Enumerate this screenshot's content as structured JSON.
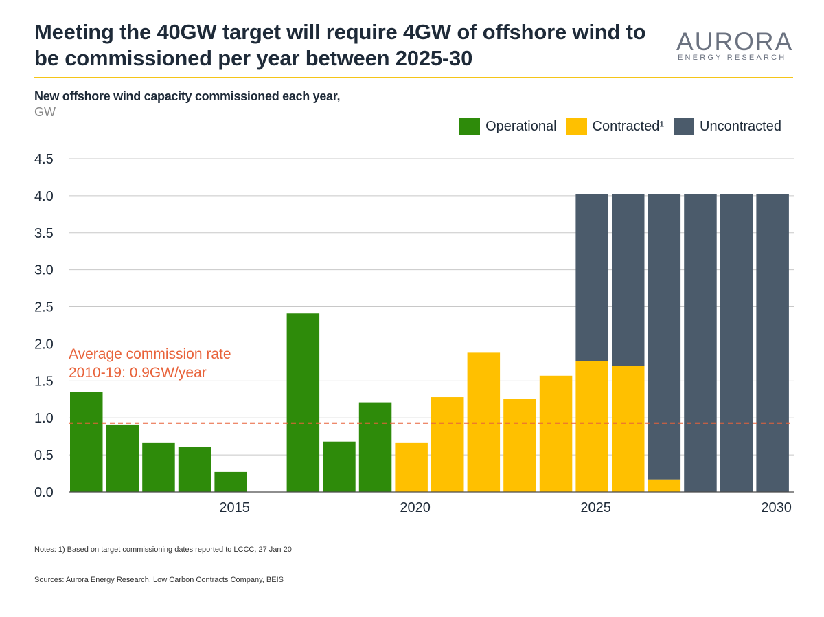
{
  "title": "Meeting the 40GW target will require 4GW of offshore wind to be commissioned per year between 2025-30",
  "logo": {
    "main": "AURORA",
    "sub": "ENERGY RESEARCH"
  },
  "colors": {
    "operational": "#2e8b0a",
    "contracted": "#ffc000",
    "uncontracted": "#4b5b6b",
    "average_line": "#e8623a",
    "gold_rule": "#f5c518"
  },
  "footer": {
    "notes": "Notes: 1) Based on target commissioning dates reported to LCCC, 27 Jan 20",
    "sources": "Sources: Aurora Energy Research, Low Carbon Contracts Company, BEIS"
  },
  "chart_data": {
    "type": "bar",
    "stacked": true,
    "title": "New offshore wind capacity commissioned each year,",
    "ylabel": "GW",
    "ylim": [
      0,
      4.5
    ],
    "yticks": [
      "0.0",
      "0.5",
      "1.0",
      "1.5",
      "2.0",
      "2.5",
      "3.0",
      "3.5",
      "4.0",
      "4.5"
    ],
    "xtick_labels": [
      {
        "label": "2015",
        "year": 2015
      },
      {
        "label": "2020",
        "year": 2020
      },
      {
        "label": "2025",
        "year": 2025
      },
      {
        "label": "2030",
        "year": 2030
      }
    ],
    "categories": [
      2011,
      2012,
      2013,
      2014,
      2015,
      2016,
      2017,
      2018,
      2019,
      2020,
      2021,
      2022,
      2023,
      2024,
      2025,
      2026,
      2027,
      2028,
      2029,
      2030
    ],
    "series": [
      {
        "name": "Operational",
        "values": [
          1.35,
          0.91,
          0.66,
          0.61,
          0.27,
          0,
          2.41,
          0.68,
          1.21,
          0,
          0,
          0,
          0,
          0,
          0,
          0,
          0,
          0,
          0,
          0
        ]
      },
      {
        "name": "Contracted¹",
        "values": [
          0,
          0,
          0,
          0,
          0,
          0,
          0,
          0,
          0,
          0.66,
          1.28,
          1.88,
          1.26,
          1.57,
          1.77,
          1.7,
          0.17,
          0,
          0,
          0
        ]
      },
      {
        "name": "Uncontracted",
        "values": [
          0,
          0,
          0,
          0,
          0,
          0,
          0,
          0,
          0,
          0,
          0,
          0,
          0,
          0,
          2.25,
          2.32,
          3.85,
          4.02,
          4.02,
          4.02
        ]
      }
    ],
    "average_line": {
      "value": 0.93,
      "label_line1": "Average commission rate",
      "label_line2": "2010-19: 0.9GW/year"
    },
    "grid": true,
    "legend": "top-right"
  }
}
